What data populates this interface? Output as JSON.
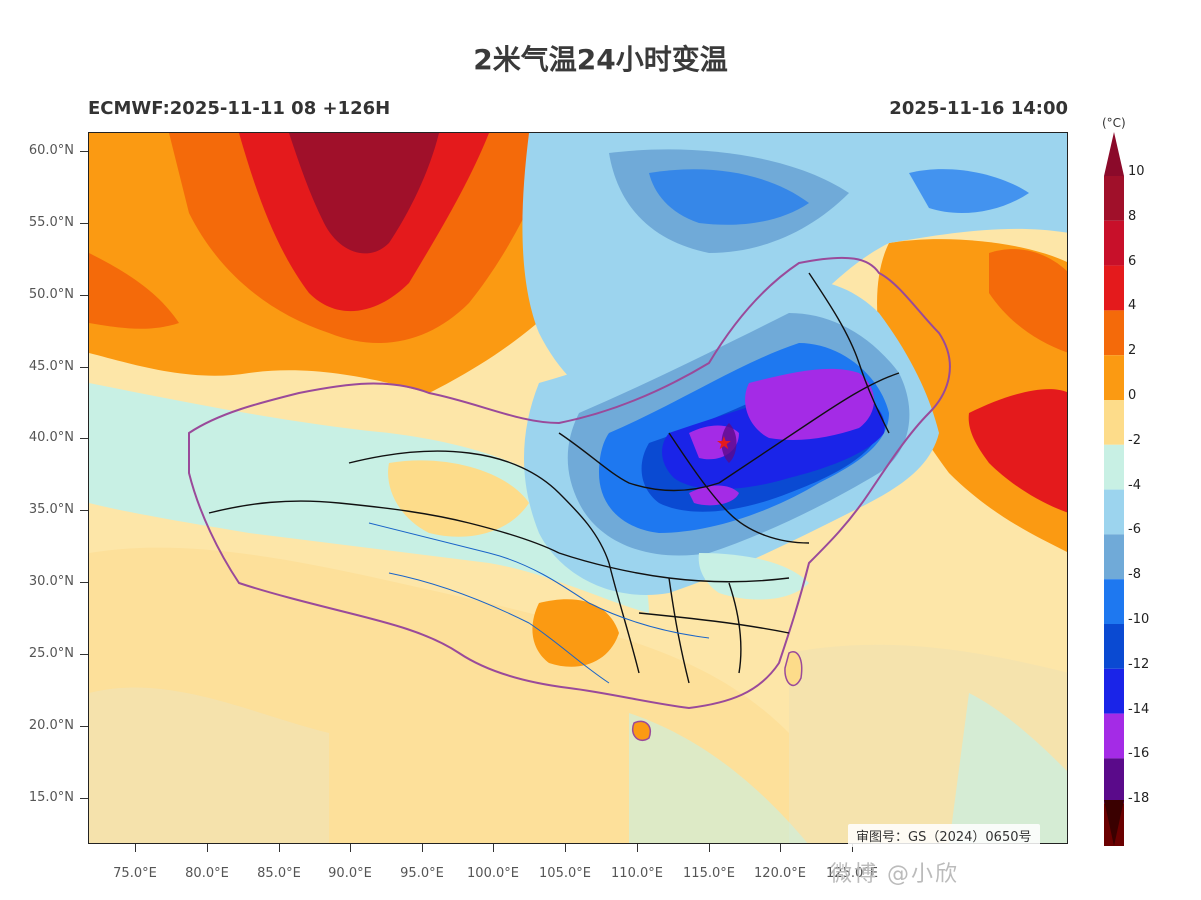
{
  "title": "2米气温24小时变温",
  "run_info": "ECMWF:2025-11-11 08 +126H",
  "valid_time": "2025-11-16 14:00",
  "approval": "审图号：GS（2024）0650号",
  "watermark": "微博 @小欣",
  "lat_labels": [
    "60.0°N",
    "55.0°N",
    "50.0°N",
    "45.0°N",
    "40.0°N",
    "35.0°N",
    "30.0°N",
    "25.0°N",
    "20.0°N",
    "15.0°N"
  ],
  "lon_labels": [
    "75.0°E",
    "80.0°E",
    "85.0°E",
    "90.0°E",
    "95.0°E",
    "100.0°E",
    "105.0°E",
    "110.0°E",
    "115.0°E",
    "120.0°E",
    "125.0°E"
  ],
  "colorbar": {
    "unit": "(°C)",
    "ticks": [
      "10",
      "8",
      "6",
      "4",
      "2",
      "0",
      "-2",
      "-4",
      "-6",
      "-8",
      "-10",
      "-12",
      "-14",
      "-16",
      "-18"
    ],
    "colors": [
      "#a0102a",
      "#c8102a",
      "#e41a1c",
      "#f46a0a",
      "#fb9a12",
      "#fddc8a",
      "#c8f0e4",
      "#9cd4ee",
      "#70aad8",
      "#1e78f0",
      "#0a4ad2",
      "#1a24e8",
      "#a42be6",
      "#5a0a8a",
      "#6a0000"
    ]
  },
  "marker": {
    "type": "star",
    "name": "Beijing",
    "color": "#e41a1c"
  }
}
